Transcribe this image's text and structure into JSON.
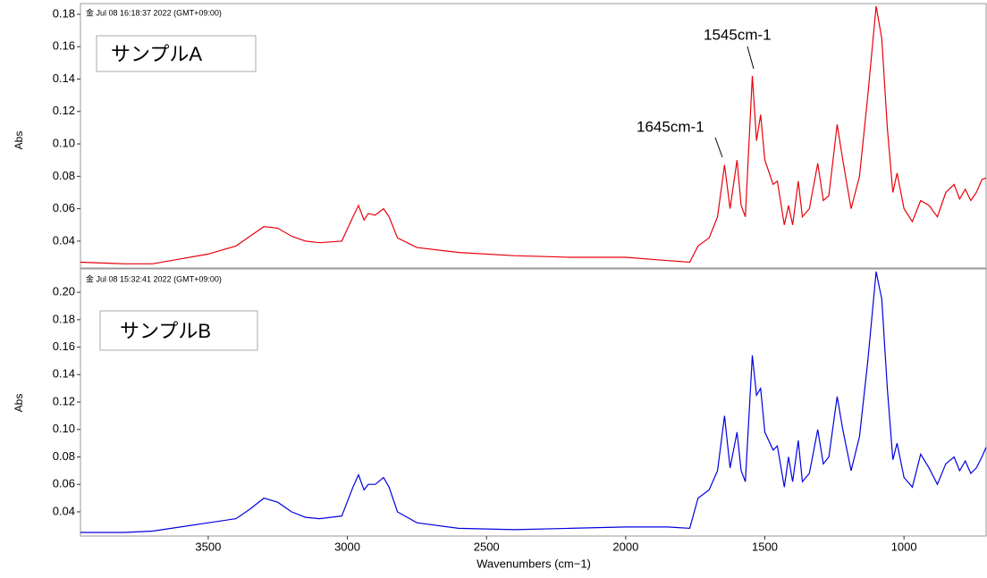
{
  "chart_data": [
    {
      "type": "line",
      "timestamp": "金 Jul 08 16:18:37 2022 (GMT+09:00)",
      "label": "サンプルA",
      "ylabel": "Abs",
      "annotations": [
        "1645cm-1",
        "1545cm-1"
      ],
      "color": "#e8000b",
      "xlim": [
        3959,
        705
      ],
      "ylim": [
        0.0234,
        0.1866
      ],
      "yticks": [
        0.04,
        0.06,
        0.08,
        {
          "value": 0.1,
          "label": "0.10"
        },
        0.12,
        0.14,
        0.16,
        0.18
      ],
      "x": [
        3959,
        3800,
        3700,
        3600,
        3500,
        3400,
        3350,
        3300,
        3250,
        3200,
        3150,
        3100,
        3020,
        2980,
        2960,
        2940,
        2925,
        2900,
        2870,
        2850,
        2820,
        2750,
        2600,
        2400,
        2200,
        2000,
        1850,
        1770,
        1740,
        1700,
        1670,
        1645,
        1625,
        1600,
        1585,
        1570,
        1545,
        1530,
        1515,
        1500,
        1470,
        1455,
        1430,
        1415,
        1400,
        1380,
        1365,
        1340,
        1310,
        1290,
        1270,
        1240,
        1220,
        1190,
        1160,
        1130,
        1100,
        1080,
        1060,
        1040,
        1025,
        1000,
        970,
        940,
        910,
        880,
        850,
        820,
        800,
        780,
        760,
        740,
        720,
        705
      ],
      "values": [
        0.027,
        0.026,
        0.026,
        0.029,
        0.032,
        0.037,
        0.043,
        0.049,
        0.048,
        0.043,
        0.04,
        0.039,
        0.04,
        0.055,
        0.062,
        0.053,
        0.057,
        0.056,
        0.06,
        0.055,
        0.042,
        0.036,
        0.033,
        0.031,
        0.03,
        0.03,
        0.028,
        0.027,
        0.037,
        0.042,
        0.055,
        0.087,
        0.06,
        0.09,
        0.062,
        0.055,
        0.142,
        0.102,
        0.118,
        0.09,
        0.075,
        0.077,
        0.05,
        0.062,
        0.05,
        0.077,
        0.055,
        0.06,
        0.088,
        0.065,
        0.068,
        0.112,
        0.09,
        0.06,
        0.08,
        0.13,
        0.185,
        0.165,
        0.11,
        0.07,
        0.082,
        0.06,
        0.052,
        0.065,
        0.062,
        0.055,
        0.07,
        0.075,
        0.066,
        0.072,
        0.065,
        0.07,
        0.078,
        0.079
      ]
    },
    {
      "type": "line",
      "timestamp": "金 Jul 08 15:32:41 2022 (GMT+09:00)",
      "label": "サンプルB",
      "ylabel": "Abs",
      "xlabel": "Wavenumbers (cm−1)",
      "color": "#0000e0",
      "xlim": [
        3959,
        705
      ],
      "ylim": [
        0.0224,
        0.217
      ],
      "yticks": [
        0.04,
        0.06,
        0.08,
        {
          "value": 0.1,
          "label": "0.10"
        },
        0.12,
        0.14,
        0.16,
        0.18,
        {
          "value": 0.2,
          "label": "0.20"
        }
      ],
      "xticks": [
        3500,
        3000,
        2500,
        2000,
        1500,
        1000
      ],
      "x": [
        3959,
        3800,
        3700,
        3600,
        3500,
        3400,
        3350,
        3300,
        3250,
        3200,
        3150,
        3100,
        3020,
        2980,
        2960,
        2940,
        2925,
        2900,
        2870,
        2850,
        2820,
        2750,
        2600,
        2400,
        2200,
        2000,
        1850,
        1770,
        1740,
        1700,
        1670,
        1645,
        1625,
        1600,
        1585,
        1570,
        1545,
        1530,
        1515,
        1500,
        1470,
        1455,
        1430,
        1415,
        1400,
        1380,
        1365,
        1340,
        1310,
        1290,
        1270,
        1240,
        1220,
        1190,
        1160,
        1130,
        1100,
        1080,
        1060,
        1040,
        1025,
        1000,
        970,
        940,
        910,
        880,
        850,
        820,
        800,
        780,
        760,
        740,
        720,
        705
      ],
      "values": [
        0.025,
        0.025,
        0.026,
        0.029,
        0.032,
        0.035,
        0.042,
        0.05,
        0.047,
        0.04,
        0.036,
        0.035,
        0.037,
        0.058,
        0.067,
        0.056,
        0.06,
        0.06,
        0.065,
        0.058,
        0.04,
        0.032,
        0.028,
        0.027,
        0.028,
        0.029,
        0.029,
        0.028,
        0.05,
        0.056,
        0.07,
        0.11,
        0.072,
        0.098,
        0.07,
        0.062,
        0.154,
        0.125,
        0.13,
        0.098,
        0.085,
        0.088,
        0.058,
        0.08,
        0.062,
        0.092,
        0.062,
        0.068,
        0.1,
        0.075,
        0.08,
        0.124,
        0.1,
        0.07,
        0.095,
        0.15,
        0.215,
        0.195,
        0.13,
        0.078,
        0.09,
        0.065,
        0.058,
        0.082,
        0.072,
        0.06,
        0.075,
        0.08,
        0.07,
        0.077,
        0.068,
        0.072,
        0.08,
        0.087
      ]
    }
  ]
}
